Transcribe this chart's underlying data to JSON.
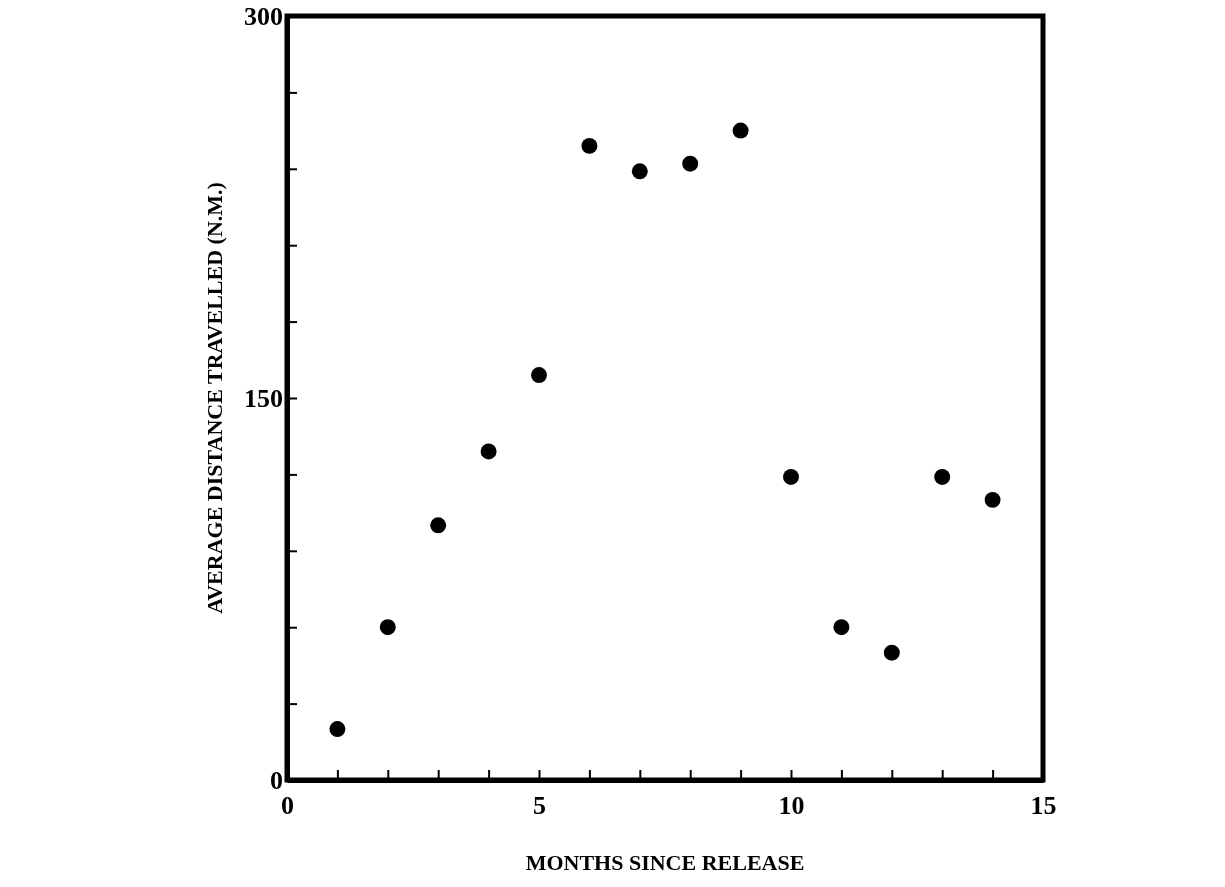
{
  "chart_data": {
    "type": "scatter",
    "xlabel": "MONTHS SINCE RELEASE",
    "ylabel": "AVERAGE DISTANCE TRAVELLED (N.M.)",
    "x": [
      1,
      2,
      3,
      4,
      5,
      6,
      7,
      8,
      9,
      10,
      11,
      12,
      13,
      14
    ],
    "values": [
      20,
      60,
      100,
      129,
      159,
      249,
      239,
      242,
      255,
      119,
      60,
      50,
      119,
      110
    ],
    "color": "#000000",
    "marker": "circle",
    "xlim": [
      0,
      15
    ],
    "xticks": [
      0,
      {
        "value": 1,
        "label": null
      },
      {
        "value": 2,
        "label": null
      },
      {
        "value": 3,
        "label": null
      },
      {
        "value": 4,
        "label": null
      },
      5,
      {
        "value": 6,
        "label": null
      },
      {
        "value": 7,
        "label": null
      },
      {
        "value": 8,
        "label": null
      },
      {
        "value": 9,
        "label": null
      },
      10,
      {
        "value": 11,
        "label": null
      },
      {
        "value": 12,
        "label": null
      },
      {
        "value": 13,
        "label": null
      },
      {
        "value": 14,
        "label": null
      },
      15
    ],
    "ylim": [
      0,
      300
    ],
    "yticks": [
      0,
      {
        "value": 30,
        "label": null
      },
      {
        "value": 60,
        "label": null
      },
      {
        "value": 90,
        "label": null
      },
      {
        "value": 120,
        "label": null
      },
      150,
      {
        "value": 180,
        "label": null
      },
      {
        "value": 210,
        "label": null
      },
      {
        "value": 240,
        "label": null
      },
      {
        "value": 270,
        "label": null
      },
      300
    ],
    "grid": false
  }
}
